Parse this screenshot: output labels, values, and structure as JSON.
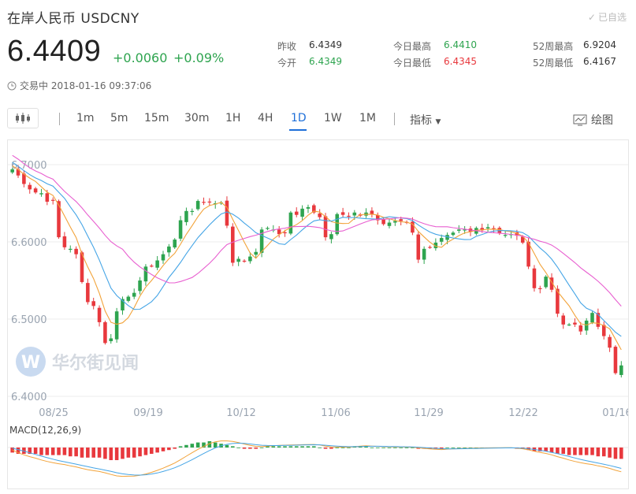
{
  "header": {
    "title": "在岸人民币  USDCNY",
    "favorite_label": "已自选",
    "price": "6.4409",
    "change": "+0.0060",
    "change_pct": "+0.09%",
    "status": "交易中 2018-01-16 09:37:06"
  },
  "stats": {
    "prev_close_label": "昨收",
    "prev_close": "6.4349",
    "open_label": "今开",
    "open": "6.4349",
    "high_label": "今日最高",
    "high": "6.4410",
    "low_label": "今日最低",
    "low": "6.4345",
    "w52_high_label": "52周最高",
    "w52_high": "6.9204",
    "w52_low_label": "52周最低",
    "w52_low": "6.4167"
  },
  "toolbar": {
    "periods": [
      "1m",
      "5m",
      "15m",
      "30m",
      "1H",
      "4H",
      "1D",
      "1W",
      "1M"
    ],
    "active_period": "1D",
    "indicator_label": "指标",
    "draw_label": "绘图"
  },
  "watermark": {
    "text": "华尔街见闻"
  },
  "colors": {
    "up": "#2ea44f",
    "down": "#e8383d",
    "ma_orange": "#f2a33a",
    "ma_blue": "#45a5e6",
    "ma_pink": "#e85fd0"
  },
  "chart_data": {
    "type": "candlestick",
    "y_ticks": [
      "6.7000",
      "6.6000",
      "6.5000",
      "6.4000"
    ],
    "x_ticks": [
      "08/25",
      "09/19",
      "10/12",
      "11/06",
      "11/29",
      "12/22",
      "01/16"
    ],
    "ylim": [
      6.4,
      6.7
    ],
    "closes": [
      6.694,
      6.686,
      6.675,
      6.668,
      6.664,
      6.663,
      6.652,
      6.654,
      6.606,
      6.593,
      6.591,
      6.584,
      6.548,
      6.522,
      6.517,
      6.496,
      6.469,
      6.475,
      6.51,
      6.526,
      6.529,
      6.534,
      6.55,
      6.568,
      6.569,
      6.576,
      6.584,
      6.594,
      6.603,
      6.628,
      6.64,
      6.64,
      6.653,
      6.651,
      6.651,
      6.65,
      6.651,
      6.621,
      6.573,
      6.578,
      6.575,
      6.581,
      6.587,
      6.616,
      6.618,
      6.616,
      6.61,
      6.612,
      6.638,
      6.635,
      6.643,
      6.645,
      6.638,
      6.632,
      6.606,
      6.61,
      6.636,
      6.635,
      6.633,
      6.638,
      6.634,
      6.638,
      6.636,
      6.628,
      6.623,
      6.625,
      6.627,
      6.627,
      6.625,
      6.612,
      6.577,
      6.591,
      6.593,
      6.599,
      6.605,
      6.609,
      6.612,
      6.616,
      6.616,
      6.613,
      6.618,
      6.615,
      6.619,
      6.617,
      6.611,
      6.609,
      6.61,
      6.608,
      6.599,
      6.568,
      6.54,
      6.539,
      6.555,
      6.538,
      6.507,
      6.493,
      6.493,
      6.493,
      6.484,
      6.498,
      6.508,
      6.49,
      6.478,
      6.463,
      6.43,
      6.44
    ],
    "macd_label": "MACD(12,26,9)",
    "macd_hist": [
      -0.4,
      -0.5,
      -0.5,
      -0.5,
      -0.5,
      -0.6,
      -0.6,
      -0.6,
      -0.6,
      -0.6,
      -0.7,
      -0.7,
      -0.8,
      -0.8,
      -0.8,
      -0.8,
      -0.9,
      -1.0,
      -1.0,
      -0.9,
      -0.8,
      -0.8,
      -0.7,
      -0.6,
      -0.5,
      -0.4,
      -0.3,
      -0.2,
      -0.1,
      0.1,
      0.2,
      0.3,
      0.4,
      0.4,
      0.5,
      0.4,
      0.3,
      0.2,
      0.1,
      0.0,
      -0.1,
      -0.1,
      -0.1,
      0.0,
      0.1,
      0.1,
      0.1,
      0.1,
      0.1,
      0.1,
      0.1,
      0.1,
      0.1,
      0.0,
      -0.1,
      -0.1,
      0.0,
      0.0,
      0.0,
      0.1,
      0.1,
      0.1,
      0.0,
      0.0,
      0.0,
      0.0,
      0.0,
      0.0,
      0.0,
      0.0,
      -0.1,
      -0.1,
      -0.1,
      -0.1,
      -0.1,
      0.0,
      0.0,
      0.0,
      0.0,
      0.0,
      0.0,
      0.0,
      0.0,
      0.0,
      0.0,
      0.0,
      0.0,
      -0.1,
      -0.1,
      -0.2,
      -0.3,
      -0.3,
      -0.3,
      -0.4,
      -0.5,
      -0.5,
      -0.6,
      -0.6,
      -0.6,
      -0.6,
      -0.6,
      -0.7,
      -0.7,
      -0.8,
      -0.9,
      -0.9
    ]
  }
}
